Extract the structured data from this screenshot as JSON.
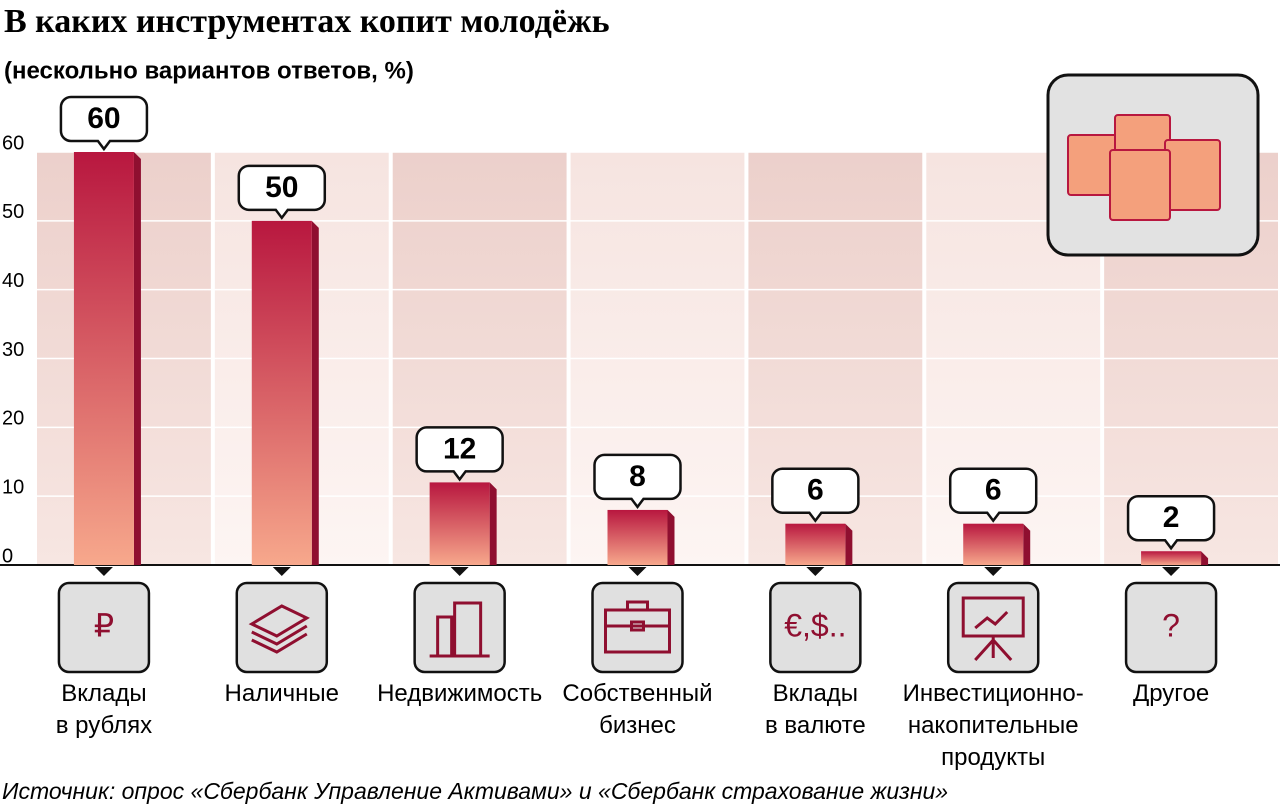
{
  "chart_data": {
    "type": "bar",
    "title": "В каких инструментах копит молодёжь",
    "subtitle": "(нескольно вариантов ответов, %)",
    "source": "Источник: опрос «Сбербанк Управление Активами» и «Сбербанк страхование жизни»",
    "categories": [
      "Вклады\nв рублях",
      "Наличные",
      "Недвижимость",
      "Собственный\nбизнес",
      "Вклады\nв валюте",
      "Инвестиционно-\nнакопительные\nпродукты",
      "Другое"
    ],
    "icon_labels": [
      "₽",
      null,
      null,
      null,
      "€,$..",
      null,
      "?"
    ],
    "values": [
      60,
      50,
      12,
      8,
      6,
      6,
      2
    ],
    "color": "#b8173f",
    "ylim": [
      0,
      60
    ],
    "yticks": [
      0,
      10,
      20,
      30,
      40,
      50,
      60
    ],
    "grid": true
  }
}
